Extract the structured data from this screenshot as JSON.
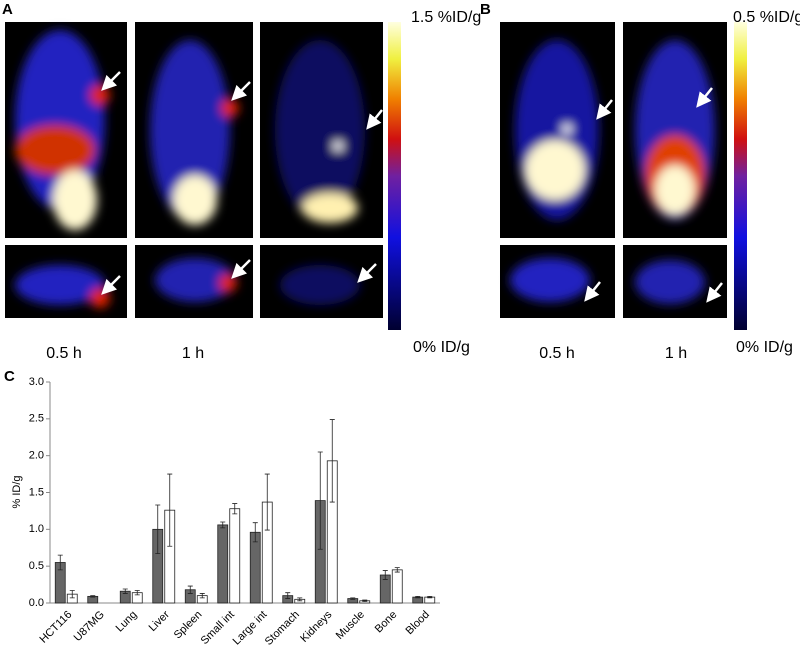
{
  "panel_a": {
    "label": "A",
    "scale_max": "1.5 %ID/g",
    "scale_min": "0% ID/g",
    "times": [
      "0.5 h",
      "1 h"
    ]
  },
  "panel_b": {
    "label": "B",
    "scale_max": "0.5 %ID/g",
    "scale_min": "0% ID/g",
    "times": [
      "0.5 h",
      "1 h"
    ]
  },
  "chart_data": {
    "type": "bar",
    "label": "C",
    "y_label": "% ID/g",
    "categories": [
      "HCT116",
      "U87MG",
      "Lung",
      "Liver",
      "Spleen",
      "Small int",
      "Large int",
      "Stomach",
      "Kidneys",
      "Muscle",
      "Bone",
      "Blood"
    ],
    "series": [
      {
        "color": "#666666",
        "values": [
          0.55,
          0.09,
          0.16,
          1.0,
          0.18,
          1.06,
          0.96,
          0.1,
          1.39,
          0.06,
          0.38,
          0.08
        ],
        "errors": [
          0.1,
          0.01,
          0.03,
          0.33,
          0.05,
          0.04,
          0.13,
          0.04,
          0.66,
          0.01,
          0.06,
          0.01
        ]
      },
      {
        "color": "#ffffff",
        "values": [
          0.12,
          null,
          0.14,
          1.26,
          0.1,
          1.28,
          1.37,
          0.05,
          1.93,
          0.03,
          0.45,
          0.08
        ],
        "errors": [
          0.05,
          null,
          0.03,
          0.49,
          0.03,
          0.07,
          0.38,
          0.02,
          0.56,
          0.01,
          0.03,
          0.01
        ]
      }
    ],
    "ylim": [
      0,
      3
    ],
    "yticks": [
      {
        "value": 0,
        "label": "0.0"
      },
      {
        "value": 0.5,
        "label": "0.5"
      },
      {
        "value": 1,
        "label": "1.0"
      },
      {
        "value": 1.5,
        "label": "1.5"
      },
      {
        "value": 2,
        "label": "2.0"
      },
      {
        "value": 2.5,
        "label": "2.5"
      },
      {
        "value": 3,
        "label": "3.0"
      }
    ]
  }
}
